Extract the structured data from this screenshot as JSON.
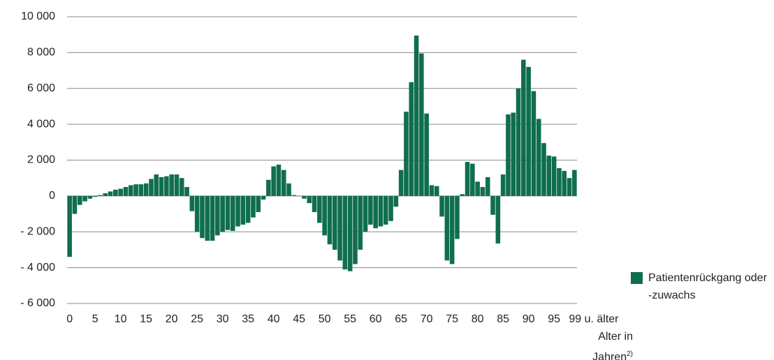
{
  "chart_data": {
    "type": "bar",
    "categories": [
      "0",
      null,
      null,
      null,
      null,
      "5",
      null,
      null,
      null,
      null,
      "10",
      null,
      null,
      null,
      null,
      "15",
      null,
      null,
      null,
      null,
      "20",
      null,
      null,
      null,
      null,
      "25",
      null,
      null,
      null,
      null,
      "30",
      null,
      null,
      null,
      null,
      "35",
      null,
      null,
      null,
      null,
      "40",
      null,
      null,
      null,
      null,
      "45",
      null,
      null,
      null,
      null,
      "50",
      null,
      null,
      null,
      null,
      "55",
      null,
      null,
      null,
      null,
      "60",
      null,
      null,
      null,
      null,
      "65",
      null,
      null,
      null,
      null,
      "70",
      null,
      null,
      null,
      null,
      "75",
      null,
      null,
      null,
      null,
      "80",
      null,
      null,
      null,
      null,
      "85",
      null,
      null,
      null,
      null,
      "90",
      null,
      null,
      null,
      null,
      "95",
      null,
      null,
      null,
      "99 u. älter"
    ],
    "series": [
      {
        "name": "Patientenrückgang oder -zuwachs",
        "color": "#0f6e4e",
        "values": [
          -3400,
          -1000,
          -500,
          -300,
          -150,
          -50,
          50,
          150,
          250,
          350,
          400,
          500,
          600,
          650,
          650,
          700,
          950,
          1200,
          1050,
          1100,
          1200,
          1200,
          1000,
          500,
          -850,
          -2000,
          -2350,
          -2500,
          -2500,
          -2200,
          -2000,
          -1900,
          -1950,
          -1700,
          -1600,
          -1500,
          -1200,
          -900,
          -200,
          900,
          1650,
          1750,
          1450,
          700,
          50,
          0,
          -150,
          -400,
          -900,
          -1500,
          -2200,
          -2700,
          -3000,
          -3600,
          -4100,
          -4200,
          -3800,
          -3000,
          -2000,
          -1600,
          -1800,
          -1700,
          -1600,
          -1400,
          -600,
          1450,
          4700,
          6350,
          8950,
          7950,
          4600,
          600,
          550,
          -1150,
          -3600,
          -3800,
          -2400,
          100,
          1900,
          1800,
          800,
          500,
          1050,
          -1050,
          -2650,
          1200,
          4550,
          4650,
          6000,
          7600,
          7200,
          5850,
          4300,
          2950,
          2250,
          2200,
          1550,
          1400,
          1000,
          1450
        ]
      }
    ],
    "xlabel": {
      "text": "Alter in Jahren",
      "footnote": "2)"
    },
    "ylim": [
      -6000,
      10000
    ],
    "yticks": [
      {
        "value": -6000,
        "label": "- 6 000"
      },
      {
        "value": -4000,
        "label": "- 4 000"
      },
      {
        "value": -2000,
        "label": "- 2 000"
      },
      0,
      {
        "value": 2000,
        "label": "2 000"
      },
      {
        "value": 4000,
        "label": "4 000"
      },
      {
        "value": 6000,
        "label": "6 000"
      },
      {
        "value": 8000,
        "label": "8 000"
      },
      {
        "value": 10000,
        "label": "10 000"
      }
    ],
    "grid": true
  }
}
